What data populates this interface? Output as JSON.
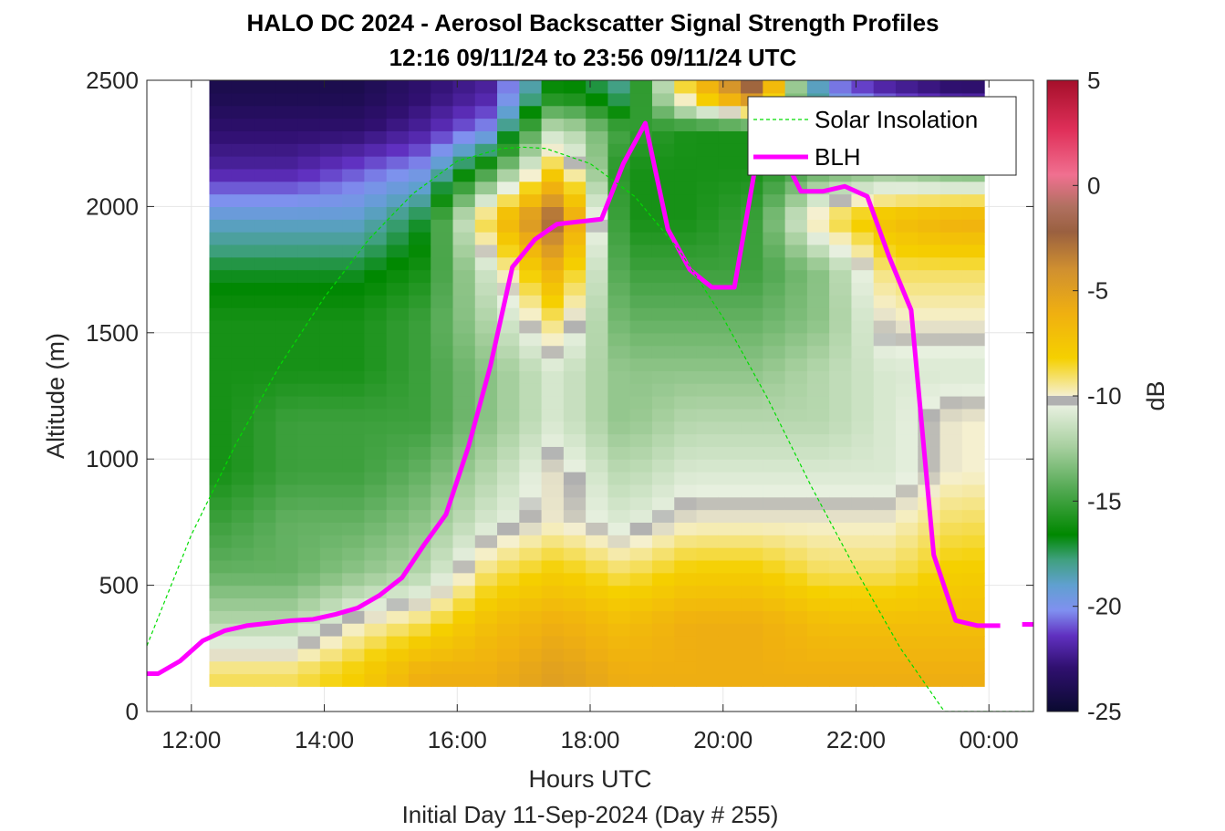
{
  "chart_data": {
    "type": "heatmap",
    "title_lines": [
      "HALO DC 2024 - Aerosol Backscatter Signal Strength Profiles",
      "12:16 09/11/24 to 23:56 09/11/24  UTC"
    ],
    "xlabel": "Hours UTC",
    "ylabel": "Altitude (m)",
    "footer": "Initial Day 11-Sep-2024 (Day # 255)",
    "xlim_hours": [
      11.33,
      24.67
    ],
    "ylim": [
      0,
      2500
    ],
    "x_ticks": [
      {
        "value": 12,
        "label": "12:00"
      },
      {
        "value": 14,
        "label": "14:00"
      },
      {
        "value": 16,
        "label": "16:00"
      },
      {
        "value": 18,
        "label": "18:00"
      },
      {
        "value": 20,
        "label": "20:00"
      },
      {
        "value": 22,
        "label": "22:00"
      },
      {
        "value": 24,
        "label": "00:00"
      }
    ],
    "y_ticks": [
      0,
      500,
      1000,
      1500,
      2000,
      2500
    ],
    "grid": true,
    "colorbar": {
      "label": "dB",
      "range": [
        -25,
        5
      ],
      "ticks": [
        5,
        0,
        -5,
        -10,
        -15,
        -20,
        -25
      ]
    },
    "legend": {
      "placement": "top-right",
      "entries": [
        "Solar Insolation",
        "BLH"
      ]
    },
    "series": [
      {
        "name": "BLH",
        "color": "#ff00ff",
        "x_hours": [
          11.33,
          11.5,
          11.83,
          12.17,
          12.5,
          12.83,
          13.17,
          13.5,
          13.83,
          14.17,
          14.5,
          14.83,
          15.17,
          15.5,
          15.83,
          16.17,
          16.5,
          16.83,
          17.17,
          17.5,
          17.83,
          18.17,
          18.5,
          18.83,
          19.17,
          19.5,
          19.83,
          20.17,
          20.5,
          20.83,
          21.17,
          21.5,
          21.83,
          22.17,
          22.5,
          22.83,
          23.17,
          23.5,
          23.83,
          24.17
        ],
        "y": [
          150,
          150,
          200,
          280,
          320,
          340,
          350,
          360,
          365,
          385,
          410,
          460,
          530,
          660,
          780,
          1050,
          1370,
          1760,
          1870,
          1930,
          1940,
          1950,
          2170,
          2330,
          1910,
          1750,
          1680,
          1680,
          2180,
          2240,
          2060,
          2060,
          2080,
          2040,
          1800,
          1590,
          620,
          360,
          340,
          340
        ]
      },
      {
        "name": "BLH",
        "color": "#ff00ff",
        "x_hours": [
          24.5,
          24.67
        ],
        "y": [
          345,
          345
        ]
      },
      {
        "name": "Solar Insolation",
        "color": "#00dd00",
        "style": "dashed",
        "x_hours": [
          11.33,
          12.0,
          12.67,
          13.33,
          14.0,
          14.67,
          15.33,
          16.0,
          16.67,
          17.0,
          17.33,
          18.0,
          18.67,
          19.33,
          20.0,
          20.67,
          21.33,
          22.0,
          22.67,
          23.33,
          23.67,
          24.67
        ],
        "y": [
          260,
          700,
          1060,
          1370,
          1640,
          1870,
          2050,
          2180,
          2230,
          2235,
          2230,
          2170,
          2040,
          1830,
          1560,
          1240,
          890,
          560,
          250,
          0,
          0,
          0
        ]
      }
    ],
    "heatmap_columns": [
      {
        "x_hours": 12.5,
        "vals_db": [
          -9,
          -12,
          -14,
          -15,
          -16,
          -16,
          -16,
          -16,
          -17,
          -19,
          -22,
          -23,
          -24
        ]
      },
      {
        "x_hours": 13.5,
        "vals_db": [
          -9,
          -12,
          -14,
          -14,
          -15,
          -15,
          -16,
          -16,
          -17,
          -19,
          -22,
          -23,
          -24
        ]
      },
      {
        "x_hours": 14.5,
        "vals_db": [
          -8,
          -10,
          -13,
          -14,
          -15,
          -15,
          -16,
          -16,
          -17,
          -19,
          -21,
          -23,
          -24
        ]
      },
      {
        "x_hours": 15.5,
        "vals_db": [
          -6,
          -9,
          -12,
          -13,
          -14,
          -15,
          -15,
          -15,
          -16,
          -17,
          -20,
          -22,
          -23
        ]
      },
      {
        "x_hours": 16.5,
        "vals_db": [
          -6,
          -7,
          -9,
          -11,
          -12,
          -13,
          -13,
          -12,
          -11,
          -8,
          -15,
          -20,
          -22
        ]
      },
      {
        "x_hours": 17.5,
        "vals_db": [
          -5,
          -6,
          -8,
          -10,
          -10,
          -11,
          -11,
          -9,
          -6,
          -2,
          -8,
          -11,
          -16
        ]
      },
      {
        "x_hours": 18.5,
        "vals_db": [
          -6,
          -7,
          -9,
          -11,
          -12,
          -13,
          -13,
          -14,
          -15,
          -16,
          -16,
          -15,
          -18
        ]
      },
      {
        "x_hours": 19.5,
        "vals_db": [
          -6,
          -6,
          -8,
          -10,
          -11,
          -12,
          -13,
          -14,
          -15,
          -16,
          -16,
          -16,
          -8
        ]
      },
      {
        "x_hours": 20.5,
        "vals_db": [
          -6,
          -6,
          -8,
          -10,
          -11,
          -12,
          -13,
          -14,
          -15,
          -15,
          -16,
          -16,
          -2
        ]
      },
      {
        "x_hours": 21.5,
        "vals_db": [
          -6,
          -7,
          -9,
          -10,
          -11,
          -12,
          -12,
          -13,
          -13,
          -9,
          -14,
          -16,
          -20
        ]
      },
      {
        "x_hours": 22.5,
        "vals_db": [
          -6,
          -7,
          -9,
          -10,
          -11,
          -11,
          -11,
          -10,
          -9,
          -7,
          -13,
          -16,
          -22
        ]
      },
      {
        "x_hours": 23.5,
        "vals_db": [
          -6,
          -7,
          -8,
          -9,
          -10,
          -10,
          -11,
          -10,
          -9,
          -6,
          -14,
          -17,
          -23
        ]
      }
    ],
    "heatmap_altitudes": [
      150,
      350,
      550,
      750,
      950,
      1150,
      1350,
      1550,
      1750,
      1950,
      2150,
      2300,
      2450
    ]
  }
}
